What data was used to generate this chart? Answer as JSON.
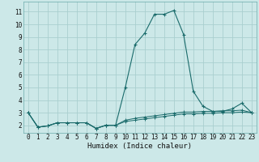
{
  "xlabel": "Humidex (Indice chaleur)",
  "bg_color": "#cce8e8",
  "grid_color": "#aacfcf",
  "line_color": "#1a6b6b",
  "x_data": [
    0,
    1,
    2,
    3,
    4,
    5,
    6,
    7,
    8,
    9,
    10,
    11,
    12,
    13,
    14,
    15,
    16,
    17,
    18,
    19,
    20,
    21,
    22,
    23
  ],
  "line1": [
    3.0,
    1.85,
    1.95,
    2.2,
    2.2,
    2.2,
    2.2,
    1.75,
    2.0,
    2.0,
    5.0,
    8.4,
    9.3,
    10.8,
    10.8,
    11.1,
    9.2,
    4.7,
    3.5,
    3.1,
    3.1,
    3.3,
    3.75,
    3.0
  ],
  "line2": [
    3.0,
    1.85,
    1.95,
    2.2,
    2.2,
    2.2,
    2.2,
    1.75,
    2.0,
    2.0,
    2.4,
    2.55,
    2.65,
    2.75,
    2.85,
    2.95,
    3.05,
    3.05,
    3.1,
    3.1,
    3.15,
    3.15,
    3.2,
    3.0
  ],
  "line3": [
    3.0,
    1.85,
    1.95,
    2.2,
    2.2,
    2.2,
    2.2,
    1.75,
    2.0,
    2.0,
    2.3,
    2.4,
    2.5,
    2.6,
    2.7,
    2.8,
    2.9,
    2.9,
    2.95,
    2.95,
    3.0,
    3.0,
    3.05,
    3.0
  ],
  "xlim": [
    -0.5,
    23.5
  ],
  "ylim": [
    1.4,
    11.8
  ],
  "xticks": [
    0,
    1,
    2,
    3,
    4,
    5,
    6,
    7,
    8,
    9,
    10,
    11,
    12,
    13,
    14,
    15,
    16,
    17,
    18,
    19,
    20,
    21,
    22,
    23
  ],
  "yticks": [
    2,
    3,
    4,
    5,
    6,
    7,
    8,
    9,
    10,
    11
  ],
  "xlabel_fontsize": 6.5,
  "tick_fontsize": 5.5
}
